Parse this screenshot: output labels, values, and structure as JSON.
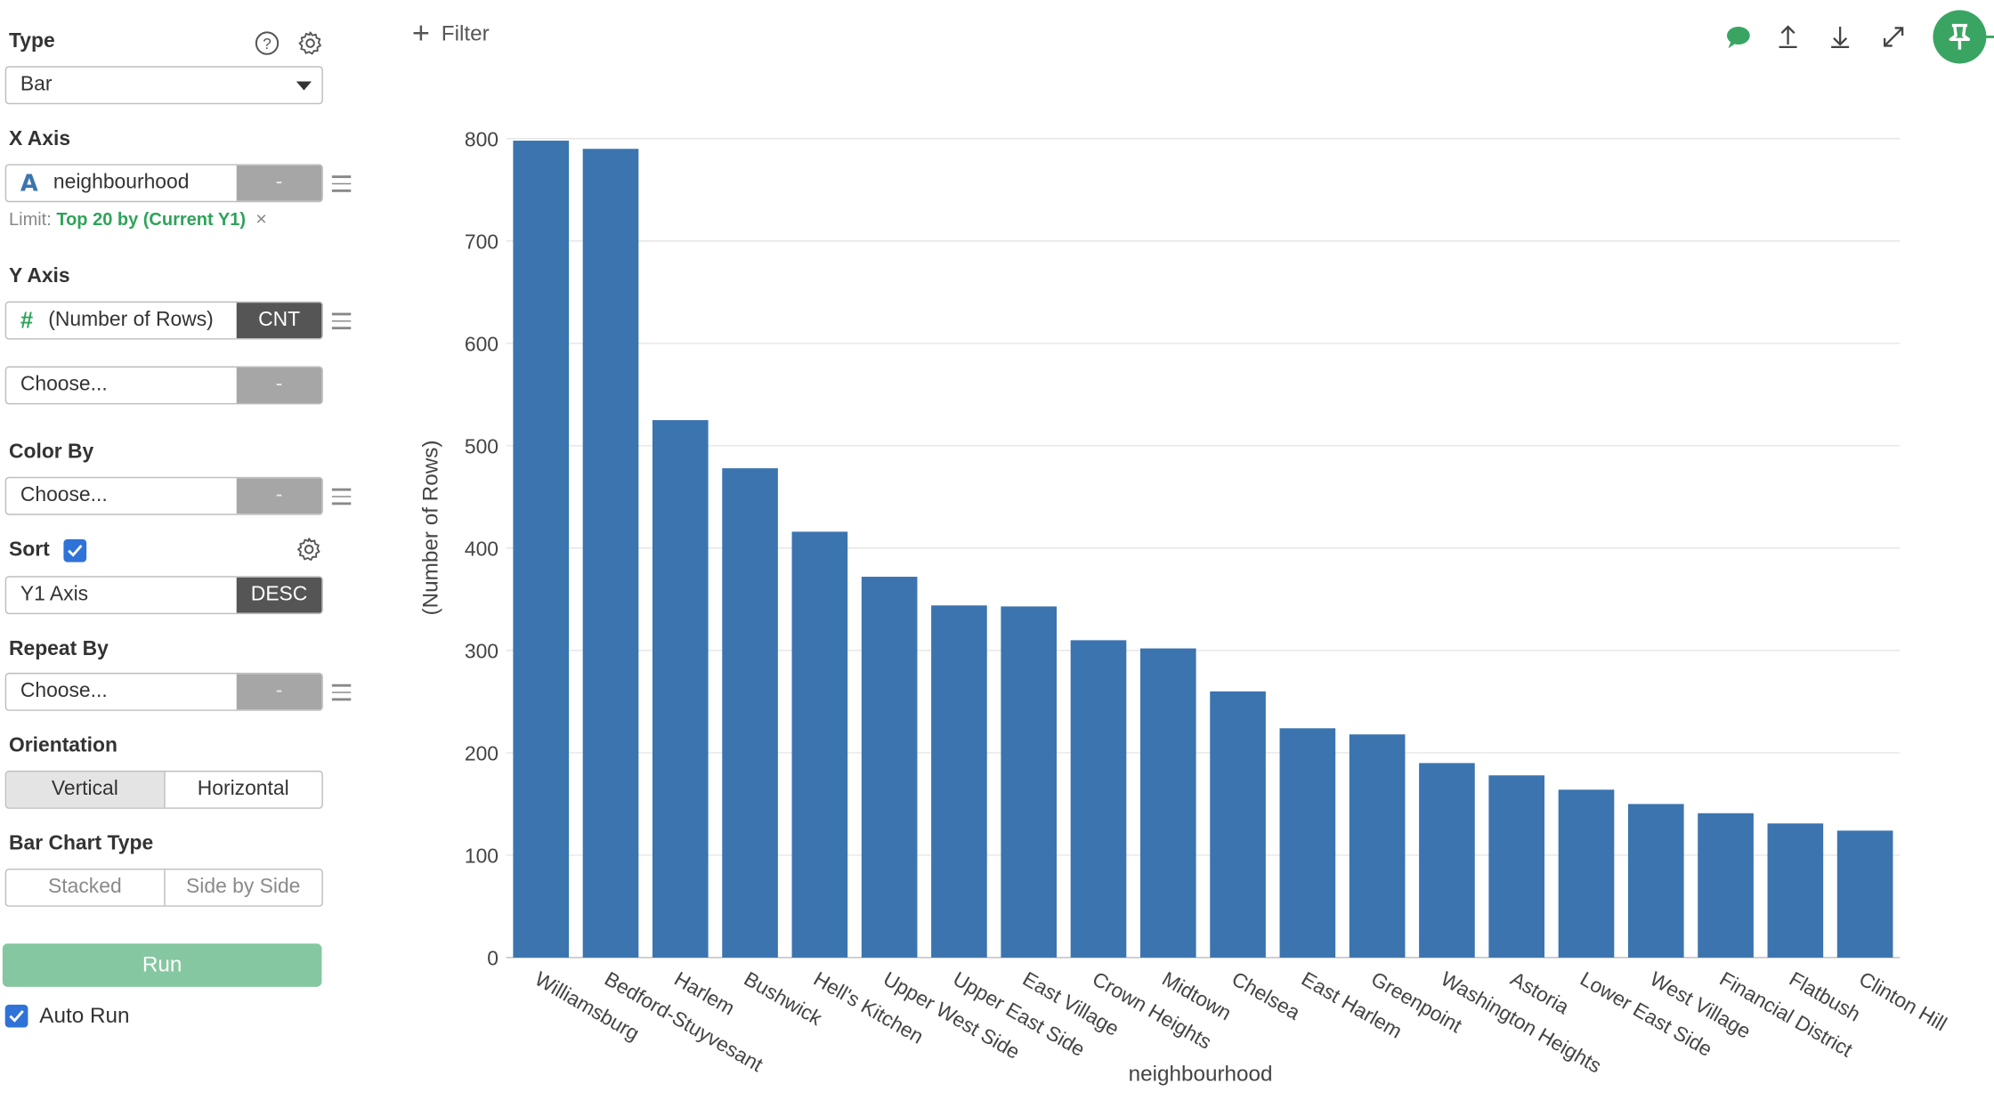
{
  "panel": {
    "type": {
      "label": "Type",
      "value": "Bar"
    },
    "x_axis": {
      "label": "X Axis",
      "field_type_icon": "A",
      "field": "neighbourhood",
      "agg": "-",
      "limit_prefix": "Limit:",
      "limit_value": "Top 20 by (Current Y1)",
      "limit_clear": "×"
    },
    "y_axis": {
      "label": "Y Axis",
      "field_type_icon": "#",
      "field": "(Number of Rows)",
      "agg": "CNT",
      "second_placeholder": "Choose...",
      "second_agg": "-"
    },
    "color_by": {
      "label": "Color By",
      "placeholder": "Choose...",
      "agg": "-"
    },
    "sort": {
      "label": "Sort",
      "checked": true,
      "field": "Y1 Axis",
      "direction": "DESC"
    },
    "repeat_by": {
      "label": "Repeat By",
      "placeholder": "Choose...",
      "agg": "-"
    },
    "orientation": {
      "label": "Orientation",
      "options": [
        "Vertical",
        "Horizontal"
      ],
      "selected": "Vertical"
    },
    "bar_chart_type": {
      "label": "Bar Chart Type",
      "options": [
        "Stacked",
        "Side by Side"
      ]
    },
    "run_label": "Run",
    "auto_run": {
      "label": "Auto Run",
      "checked": true
    }
  },
  "toolbar": {
    "filter_label": "Filter",
    "icons": [
      "comment-icon",
      "upload-icon",
      "download-icon",
      "expand-icon",
      "pin-icon"
    ],
    "accent_color": "#3aa563"
  },
  "chart_data": {
    "type": "bar",
    "xlabel": "neighbourhood",
    "ylabel": "(Number of Rows)",
    "ylim": [
      0,
      800
    ],
    "yticks": [
      0,
      100,
      200,
      300,
      400,
      500,
      600,
      700,
      800
    ],
    "grid": true,
    "bar_color": "#3b74af",
    "categories": [
      "Williamsburg",
      "Bedford-Stuyvesant",
      "Harlem",
      "Bushwick",
      "Hell's Kitchen",
      "Upper West Side",
      "Upper East Side",
      "East Village",
      "Crown Heights",
      "Midtown",
      "Chelsea",
      "East Harlem",
      "Greenpoint",
      "Washington Heights",
      "Astoria",
      "Lower East Side",
      "West Village",
      "Financial District",
      "Flatbush",
      "Clinton Hill"
    ],
    "values": [
      798,
      790,
      525,
      478,
      416,
      372,
      344,
      343,
      310,
      302,
      260,
      224,
      218,
      190,
      178,
      164,
      150,
      141,
      131,
      124
    ]
  }
}
